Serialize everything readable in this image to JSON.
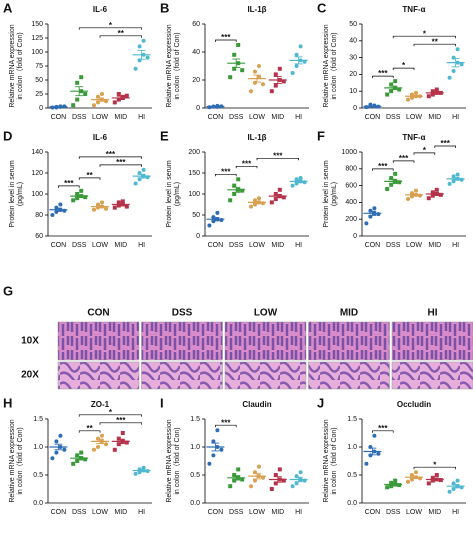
{
  "chart_data": [
    {
      "type": "dotplot",
      "panel": "A",
      "title": "IL-6",
      "ylabel": [
        "Relative mRNA expression",
        "in colon（fold of Con)"
      ],
      "categories": [
        "CON",
        "DSS",
        "LOW",
        "MID",
        "HI"
      ],
      "colors": [
        "#2e6db4",
        "#3a9a3a",
        "#d9a050",
        "#b5334a",
        "#4fb8d0"
      ],
      "ylim": [
        0,
        150
      ],
      "yticks": [
        0,
        25,
        50,
        75,
        100,
        125,
        150
      ],
      "values": [
        2,
        30,
        15,
        18,
        95
      ],
      "errors": [
        1,
        8,
        3,
        3,
        8
      ],
      "points": [
        [
          1,
          2,
          3,
          1,
          2,
          3
        ],
        [
          5,
          15,
          30,
          45,
          55,
          25
        ],
        [
          5,
          10,
          15,
          20,
          25,
          12
        ],
        [
          10,
          15,
          20,
          25,
          18,
          22
        ],
        [
          70,
          85,
          95,
          110,
          120,
          90
        ]
      ],
      "brackets": [
        {
          "from": 2,
          "to": 4,
          "label": "**"
        },
        {
          "from": 1,
          "to": 4,
          "label": "*"
        }
      ]
    },
    {
      "type": "dotplot",
      "panel": "B",
      "title": "IL-1β",
      "ylabel": [
        "Relative mRNA expression",
        "in colon（fold of Con)"
      ],
      "categories": [
        "CON",
        "DSS",
        "LOW",
        "MID",
        "HI"
      ],
      "colors": [
        "#2e6db4",
        "#3a9a3a",
        "#d9a050",
        "#b5334a",
        "#4fb8d0"
      ],
      "ylim": [
        0,
        60
      ],
      "yticks": [
        0,
        20,
        40,
        60
      ],
      "values": [
        1,
        32,
        21,
        20,
        34
      ],
      "errors": [
        0.3,
        3,
        2.5,
        2.5,
        2.5
      ],
      "points": [
        [
          0.5,
          1,
          1.5,
          1,
          0.8,
          1.2
        ],
        [
          22,
          28,
          32,
          38,
          45,
          27
        ],
        [
          12,
          18,
          22,
          26,
          30,
          17
        ],
        [
          12,
          16,
          20,
          24,
          28,
          19
        ],
        [
          25,
          30,
          34,
          38,
          44,
          33
        ]
      ],
      "brackets": [
        {
          "from": 0,
          "to": 1,
          "label": "***"
        }
      ]
    },
    {
      "type": "dotplot",
      "panel": "C",
      "title": "TNF-α",
      "ylabel": [
        "Relative mRNA expression",
        "in colon（fold of Con)"
      ],
      "categories": [
        "CON",
        "DSS",
        "LOW",
        "MID",
        "HI"
      ],
      "colors": [
        "#2e6db4",
        "#3a9a3a",
        "#d9a050",
        "#b5334a",
        "#4fb8d0"
      ],
      "ylim": [
        0,
        50
      ],
      "yticks": [
        0,
        10,
        20,
        30,
        40,
        50
      ],
      "values": [
        1,
        12,
        7,
        9,
        27
      ],
      "errors": [
        0.3,
        1,
        0.5,
        0.5,
        2.5
      ],
      "points": [
        [
          0.5,
          1,
          1.5,
          2,
          1,
          0.8
        ],
        [
          8,
          10,
          12,
          14,
          16,
          11
        ],
        [
          5,
          6,
          7,
          8,
          9,
          7
        ],
        [
          7,
          8,
          9,
          10,
          11,
          9
        ],
        [
          18,
          22,
          27,
          30,
          35,
          26
        ]
      ],
      "brackets": [
        {
          "from": 0,
          "to": 1,
          "label": "***"
        },
        {
          "from": 1,
          "to": 2,
          "label": "*"
        },
        {
          "from": 2,
          "to": 4,
          "label": "**"
        },
        {
          "from": 1,
          "to": 4,
          "label": "*"
        }
      ]
    },
    {
      "type": "dotplot",
      "panel": "D",
      "title": "IL-6",
      "ylabel": [
        "Protein level in serum",
        "(pg/mL)"
      ],
      "categories": [
        "CON",
        "DSS",
        "LOW",
        "MID",
        "HI"
      ],
      "colors": [
        "#2e6db4",
        "#3a9a3a",
        "#d9a050",
        "#b5334a",
        "#4fb8d0"
      ],
      "ylim": [
        60,
        140
      ],
      "yticks": [
        60,
        80,
        100,
        120,
        140
      ],
      "values": [
        85,
        98,
        88,
        90,
        117
      ],
      "errors": [
        1.5,
        1.2,
        1,
        1,
        1.8
      ],
      "points": [
        [
          80,
          83,
          85,
          87,
          90,
          84
        ],
        [
          94,
          96,
          98,
          100,
          103,
          97
        ],
        [
          85,
          87,
          88,
          90,
          92,
          86
        ],
        [
          87,
          89,
          90,
          92,
          93,
          88
        ],
        [
          110,
          114,
          117,
          120,
          123,
          116
        ]
      ],
      "brackets": [
        {
          "from": 0,
          "to": 1,
          "label": "***"
        },
        {
          "from": 1,
          "to": 2,
          "label": "**"
        },
        {
          "from": 2,
          "to": 4,
          "label": "***"
        },
        {
          "from": 1,
          "to": 4,
          "label": "***"
        }
      ]
    },
    {
      "type": "dotplot",
      "panel": "E",
      "title": "IL-1β",
      "ylabel": [
        "Protein level in serum",
        "(pg/mL)"
      ],
      "categories": [
        "CON",
        "DSS",
        "LOW",
        "MID",
        "HI"
      ],
      "colors": [
        "#2e6db4",
        "#3a9a3a",
        "#d9a050",
        "#b5334a",
        "#4fb8d0"
      ],
      "ylim": [
        0,
        200
      ],
      "yticks": [
        0,
        50,
        100,
        150,
        200
      ],
      "values": [
        40,
        110,
        80,
        95,
        130
      ],
      "errors": [
        4,
        6,
        3,
        4,
        3
      ],
      "points": [
        [
          25,
          35,
          40,
          45,
          55,
          38
        ],
        [
          85,
          100,
          110,
          120,
          135,
          108
        ],
        [
          70,
          75,
          80,
          85,
          90,
          78
        ],
        [
          80,
          88,
          95,
          100,
          110,
          92
        ],
        [
          120,
          125,
          130,
          135,
          138,
          128
        ]
      ],
      "brackets": [
        {
          "from": 0,
          "to": 1,
          "label": "***"
        },
        {
          "from": 1,
          "to": 2,
          "label": "***"
        },
        {
          "from": 2,
          "to": 4,
          "label": "***"
        }
      ]
    },
    {
      "type": "dotplot",
      "panel": "F",
      "title": "TNF-α",
      "ylabel": [
        "Protein level in serum",
        "(pg/mL)"
      ],
      "categories": [
        "CON",
        "DSS",
        "LOW",
        "MID",
        "HI"
      ],
      "colors": [
        "#2e6db4",
        "#3a9a3a",
        "#d9a050",
        "#b5334a",
        "#4fb8d0"
      ],
      "ylim": [
        0,
        1000
      ],
      "yticks": [
        0,
        200,
        400,
        600,
        800,
        1000
      ],
      "values": [
        270,
        650,
        490,
        500,
        680
      ],
      "errors": [
        25,
        25,
        15,
        15,
        15
      ],
      "points": [
        [
          150,
          230,
          270,
          300,
          330,
          260
        ],
        [
          560,
          610,
          650,
          690,
          740,
          640
        ],
        [
          440,
          470,
          490,
          510,
          540,
          480
        ],
        [
          450,
          480,
          500,
          520,
          550,
          490
        ],
        [
          620,
          650,
          680,
          710,
          730,
          670
        ]
      ],
      "brackets": [
        {
          "from": 0,
          "to": 1,
          "label": "***"
        },
        {
          "from": 1,
          "to": 2,
          "label": "***"
        },
        {
          "from": 2,
          "to": 3,
          "label": "*"
        },
        {
          "from": 3,
          "to": 4,
          "label": "***"
        }
      ]
    },
    {
      "type": "dotplot",
      "panel": "H",
      "title": "ZO-1",
      "ylabel": [
        "Relative mRNA expression",
        "in colon（fold of Con)"
      ],
      "categories": [
        "CON",
        "DSS",
        "LOW",
        "MID",
        "HI"
      ],
      "colors": [
        "#2e6db4",
        "#3a9a3a",
        "#d9a050",
        "#b5334a",
        "#4fb8d0"
      ],
      "ylim": [
        0,
        1.5
      ],
      "yticks": [
        {
          "value": 0,
          "label": "0.0"
        },
        0.5,
        {
          "value": 1,
          "label": "1.0"
        },
        1.5
      ],
      "values": [
        1.0,
        0.8,
        1.1,
        1.1,
        0.58
      ],
      "errors": [
        0.05,
        0.03,
        0.04,
        0.04,
        0.02
      ],
      "points": [
        [
          0.8,
          0.9,
          1.0,
          1.1,
          1.2,
          0.95
        ],
        [
          0.7,
          0.75,
          0.8,
          0.85,
          0.9,
          0.78
        ],
        [
          0.95,
          1.0,
          1.1,
          1.15,
          1.2,
          1.05
        ],
        [
          0.95,
          1.05,
          1.1,
          1.15,
          1.25,
          1.08
        ],
        [
          0.52,
          0.55,
          0.58,
          0.6,
          0.63,
          0.57
        ]
      ],
      "brackets": [
        {
          "from": 1,
          "to": 2,
          "label": "**"
        },
        {
          "from": 2,
          "to": 4,
          "label": "***"
        },
        {
          "from": 1,
          "to": 4,
          "label": "*"
        }
      ]
    },
    {
      "type": "dotplot",
      "panel": "I",
      "title": "Claudin",
      "ylabel": [
        "Relative mRNA expression",
        "in colon（fold of Con)"
      ],
      "categories": [
        "CON",
        "DSS",
        "LOW",
        "MID",
        "HI"
      ],
      "colors": [
        "#2e6db4",
        "#3a9a3a",
        "#d9a050",
        "#b5334a",
        "#4fb8d0"
      ],
      "ylim": [
        0,
        1.5
      ],
      "yticks": [
        {
          "value": 0,
          "label": "0.0"
        },
        0.5,
        {
          "value": 1,
          "label": "1.0"
        },
        1.5
      ],
      "values": [
        1.0,
        0.45,
        0.48,
        0.42,
        0.42
      ],
      "errors": [
        0.07,
        0.04,
        0.05,
        0.05,
        0.04
      ],
      "points": [
        [
          0.7,
          0.85,
          1.0,
          1.1,
          1.3,
          0.95
        ],
        [
          0.3,
          0.4,
          0.45,
          0.5,
          0.6,
          0.42
        ],
        [
          0.3,
          0.4,
          0.48,
          0.55,
          0.65,
          0.45
        ],
        [
          0.25,
          0.35,
          0.42,
          0.5,
          0.6,
          0.4
        ],
        [
          0.3,
          0.35,
          0.42,
          0.48,
          0.55,
          0.4
        ]
      ],
      "brackets": [
        {
          "from": 0,
          "to": 1,
          "label": "***"
        }
      ]
    },
    {
      "type": "dotplot",
      "panel": "J",
      "title": "Occludin",
      "ylabel": [
        "Relative mRNA expression",
        "in colon（fold of Con)"
      ],
      "categories": [
        "CON",
        "DSS",
        "LOW",
        "MID",
        "HI"
      ],
      "colors": [
        "#2e6db4",
        "#3a9a3a",
        "#d9a050",
        "#b5334a",
        "#4fb8d0"
      ],
      "ylim": [
        0,
        1.5
      ],
      "yticks": [
        {
          "value": 0,
          "label": "0.0"
        },
        0.5,
        {
          "value": 1,
          "label": "1.0"
        },
        1.5
      ],
      "values": [
        0.92,
        0.33,
        0.46,
        0.42,
        0.3
      ],
      "errors": [
        0.06,
        0.02,
        0.02,
        0.02,
        0.03
      ],
      "points": [
        [
          0.7,
          0.85,
          0.92,
          1.0,
          1.2,
          0.88
        ],
        [
          0.28,
          0.3,
          0.33,
          0.36,
          0.4,
          0.32
        ],
        [
          0.38,
          0.42,
          0.46,
          0.5,
          0.55,
          0.44
        ],
        [
          0.35,
          0.4,
          0.42,
          0.45,
          0.5,
          0.41
        ],
        [
          0.2,
          0.25,
          0.3,
          0.35,
          0.4,
          0.28
        ]
      ],
      "brackets": [
        {
          "from": 0,
          "to": 1,
          "label": "***"
        },
        {
          "from": 2,
          "to": 4,
          "label": "*"
        }
      ]
    }
  ],
  "histology": {
    "panel": "G",
    "columns": [
      "CON",
      "DSS",
      "LOW",
      "MID",
      "HI"
    ],
    "rows": [
      "10X",
      "20X"
    ]
  }
}
